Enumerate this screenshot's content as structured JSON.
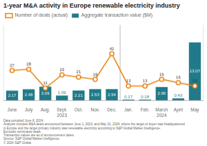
{
  "chart_data": {
    "type": "bar",
    "title": "1-year M&A activity in Europe renewable electricity industry",
    "categories": [
      "June",
      "July",
      "Aug.",
      "Sept.",
      "Oct.",
      "Nov.",
      "Dec.",
      "Jan.",
      "Feb.",
      "March",
      "April",
      "May"
    ],
    "series": [
      {
        "name": "Aggregate transaction value ($M)",
        "type": "bar",
        "color": "#217a8a",
        "values": [
          2.17,
          2.48,
          3.09,
          1.09,
          2.21,
          2.53,
          2.54,
          0.17,
          0.18,
          2.99,
          0.43,
          13.07
        ]
      },
      {
        "name": "Number of deals (actual)",
        "type": "line",
        "color": "#e8820c",
        "marker": "circle",
        "axis": "y2",
        "values": [
          27,
          28,
          11,
          23,
          21,
          19,
          42,
          13,
          13,
          19,
          16,
          13
        ]
      }
    ],
    "ylim": [
      0,
      17
    ],
    "yticks": [],
    "y2lim": [
      0,
      68
    ],
    "y2ticks": [],
    "tick_labels": "x",
    "grid": false,
    "legend": "upper left",
    "data_labels": true,
    "annotations": [
      {
        "text": "2023",
        "x": "Sept."
      },
      {
        "text": "2024",
        "x": "March"
      },
      {
        "type": "separator",
        "between": [
          "Dec.",
          "Jan."
        ]
      }
    ],
    "footnote": [
      "Data compiled June 8, 2024.",
      "Analysis includes M&A deals announced between June 1, 2023, and May 31, 2024, where the target or buyer was headquartered",
      "in Europe and the target primary industry was renewable electricity according to S&P Global Market Intelligence.",
      "Excludes terminated deals.",
      "Transaction values are as of announcement dates.",
      "Source: S&P Global Market Intelligence.",
      "© 2024 S&P Global."
    ]
  }
}
